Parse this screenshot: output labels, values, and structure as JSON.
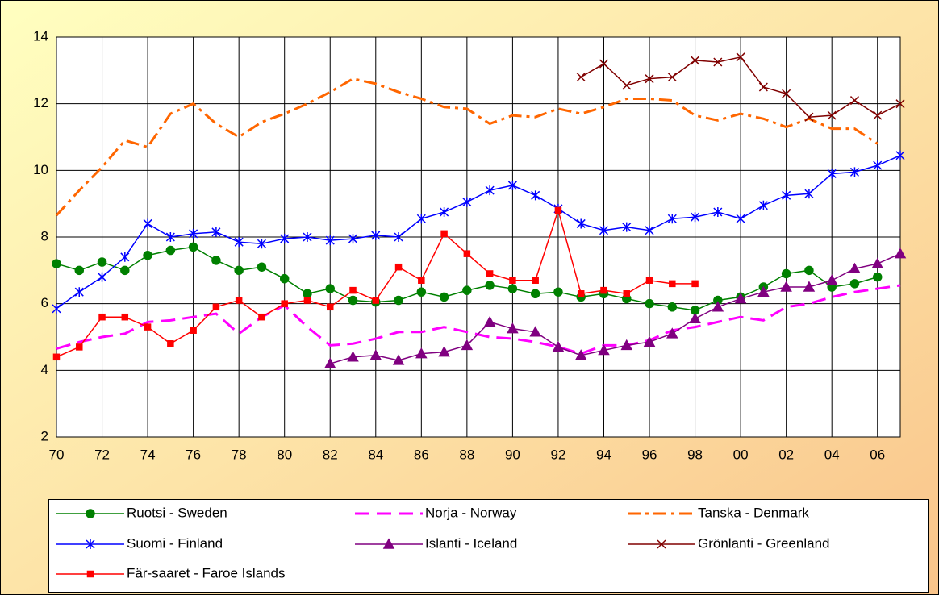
{
  "chart_data": {
    "type": "line",
    "categories": [
      "70",
      null,
      "72",
      null,
      "74",
      null,
      "76",
      null,
      "78",
      null,
      "80",
      null,
      "82",
      null,
      "84",
      null,
      "86",
      null,
      "88",
      null,
      "90",
      null,
      "92",
      null,
      "94",
      null,
      "96",
      null,
      "98",
      null,
      "00",
      null,
      "02",
      null,
      "04",
      null,
      "06",
      null
    ],
    "ylim": [
      2,
      14
    ],
    "yticks": [
      2,
      4,
      6,
      8,
      10,
      12,
      14
    ],
    "grid": true,
    "series": [
      {
        "name": "Ruotsi - Sweden",
        "color": "#008000",
        "marker": "circle",
        "dash": "solid",
        "values": [
          7.2,
          7.0,
          7.25,
          7.0,
          7.45,
          7.6,
          7.7,
          7.3,
          7.0,
          7.1,
          6.75,
          6.3,
          6.45,
          6.1,
          6.05,
          6.1,
          6.35,
          6.2,
          6.4,
          6.55,
          6.45,
          6.3,
          6.35,
          6.2,
          6.3,
          6.15,
          6.0,
          5.9,
          5.8,
          6.1,
          6.2,
          6.5,
          6.9,
          7.0,
          6.5,
          6.6,
          6.8,
          null
        ]
      },
      {
        "name": "Norja - Norway",
        "color": "#ff00ff",
        "marker": "none",
        "dash": "dash",
        "values": [
          4.65,
          4.85,
          5.0,
          5.1,
          5.45,
          5.5,
          5.6,
          5.7,
          5.1,
          5.6,
          5.95,
          5.3,
          4.75,
          4.8,
          4.95,
          5.15,
          5.15,
          5.3,
          5.15,
          5.0,
          4.95,
          4.85,
          4.7,
          4.5,
          4.75,
          4.75,
          4.9,
          5.2,
          5.3,
          5.45,
          5.6,
          5.5,
          5.9,
          6.0,
          6.2,
          6.35,
          6.45,
          6.55
        ]
      },
      {
        "name": "Tanska - Denmark",
        "color": "#ff6600",
        "marker": "none",
        "dash": "dashdot",
        "values": [
          8.65,
          9.4,
          10.1,
          10.9,
          10.7,
          11.7,
          12.0,
          11.4,
          11.0,
          11.45,
          11.7,
          12.0,
          12.35,
          12.75,
          12.6,
          12.35,
          12.15,
          11.9,
          11.85,
          11.4,
          11.65,
          11.6,
          11.85,
          11.7,
          11.9,
          12.15,
          12.15,
          12.1,
          11.65,
          11.5,
          11.7,
          11.55,
          11.3,
          11.55,
          11.25,
          11.25,
          10.8,
          null
        ]
      },
      {
        "name": "Suomi - Finland",
        "color": "#0000ff",
        "marker": "star",
        "dash": "solid",
        "values": [
          5.85,
          6.35,
          6.8,
          7.4,
          8.4,
          8.0,
          8.1,
          8.15,
          7.85,
          7.8,
          7.95,
          8.0,
          7.9,
          7.95,
          8.05,
          8.0,
          8.55,
          8.75,
          9.05,
          9.4,
          9.55,
          9.25,
          8.85,
          8.4,
          8.2,
          8.3,
          8.2,
          8.55,
          8.6,
          8.75,
          8.55,
          8.95,
          9.25,
          9.3,
          9.9,
          9.95,
          10.15,
          10.45
        ]
      },
      {
        "name": "Islanti - Iceland",
        "color": "#800080",
        "marker": "triangle",
        "dash": "solid",
        "values": [
          null,
          null,
          null,
          null,
          null,
          null,
          null,
          null,
          null,
          null,
          null,
          null,
          4.2,
          4.4,
          4.45,
          4.3,
          4.5,
          4.55,
          4.75,
          5.45,
          5.25,
          5.15,
          4.7,
          4.45,
          4.6,
          4.75,
          4.85,
          5.1,
          5.55,
          5.9,
          6.15,
          6.35,
          6.5,
          6.5,
          6.7,
          7.05,
          7.2,
          7.5
        ]
      },
      {
        "name": "Grönlanti - Greenland",
        "color": "#800000",
        "marker": "x",
        "dash": "solid",
        "values": [
          null,
          null,
          null,
          null,
          null,
          null,
          null,
          null,
          null,
          null,
          null,
          null,
          null,
          null,
          null,
          null,
          null,
          null,
          null,
          null,
          null,
          null,
          null,
          12.8,
          13.2,
          12.55,
          12.75,
          12.8,
          13.3,
          13.25,
          13.4,
          12.5,
          12.3,
          11.6,
          11.65,
          12.1,
          11.65,
          12.0
        ]
      },
      {
        "name": "Fär-saaret - Faroe Islands",
        "color": "#ff0000",
        "marker": "square",
        "dash": "solid",
        "values": [
          4.4,
          4.7,
          5.6,
          5.6,
          5.3,
          4.8,
          5.2,
          5.9,
          6.1,
          5.6,
          6.0,
          6.1,
          5.9,
          6.4,
          6.1,
          7.1,
          6.7,
          8.1,
          7.5,
          6.9,
          6.7,
          6.7,
          8.8,
          6.3,
          6.4,
          6.3,
          6.7,
          6.6,
          6.6,
          null,
          null,
          null,
          null,
          null,
          null,
          null,
          null,
          null
        ]
      }
    ]
  }
}
